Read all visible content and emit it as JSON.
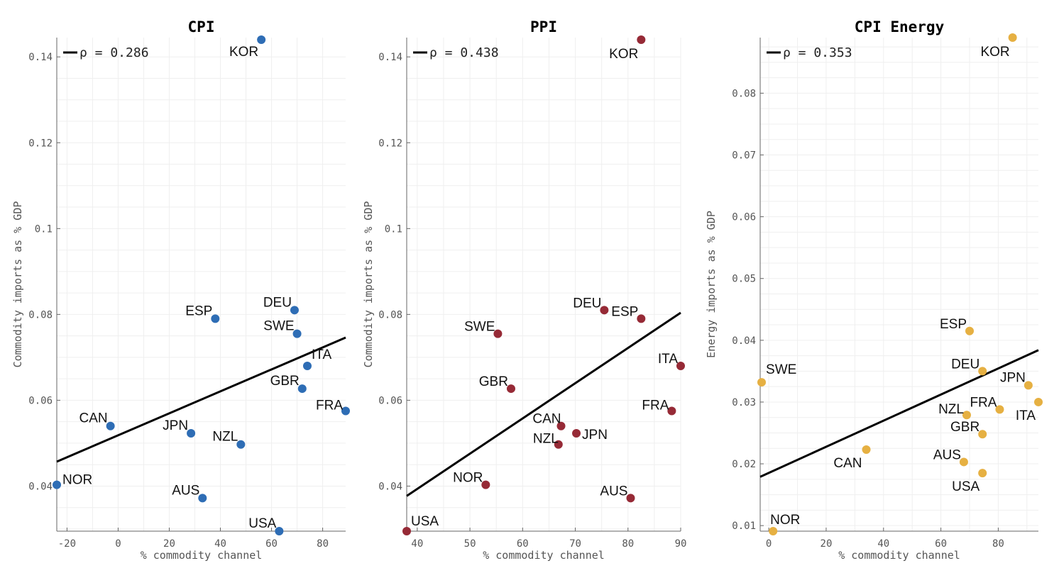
{
  "chart_data": [
    {
      "type": "scatter",
      "title": "CPI",
      "xlabel": "% commodity channel",
      "ylabel": "Commodity imports as % GDP",
      "xlim": [
        -24,
        89
      ],
      "ylim": [
        0.0295,
        0.1445
      ],
      "xticks": [
        -20,
        0,
        20,
        40,
        60,
        80
      ],
      "xtick_labels": [
        "-20",
        "0",
        "20",
        "40",
        "60",
        "80"
      ],
      "yticks": [
        0.04,
        0.06,
        0.08,
        0.1,
        0.12,
        0.14
      ],
      "ytick_labels": [
        "0.04",
        "0.06",
        "0.08",
        "0.1",
        "0.12",
        "0.14"
      ],
      "color": "#2e6db5",
      "grid": true,
      "legend": "top-left",
      "legend_label": "ρ = 0.286",
      "fit_line": {
        "x": [
          -24,
          89
        ],
        "y": [
          0.0457,
          0.0746
        ]
      },
      "points": [
        {
          "label": "KOR",
          "x": 56,
          "y": 0.144
        },
        {
          "label": "DEU",
          "x": 69,
          "y": 0.081
        },
        {
          "label": "ESP",
          "x": 38,
          "y": 0.079
        },
        {
          "label": "SWE",
          "x": 70,
          "y": 0.0755
        },
        {
          "label": "ITA",
          "x": 74,
          "y": 0.068
        },
        {
          "label": "GBR",
          "x": 72,
          "y": 0.0627
        },
        {
          "label": "FRA",
          "x": 89,
          "y": 0.0575
        },
        {
          "label": "CAN",
          "x": -3,
          "y": 0.054
        },
        {
          "label": "JPN",
          "x": 28.5,
          "y": 0.0523
        },
        {
          "label": "NZL",
          "x": 48,
          "y": 0.0497
        },
        {
          "label": "NOR",
          "x": -24,
          "y": 0.0403
        },
        {
          "label": "AUS",
          "x": 33,
          "y": 0.0372
        },
        {
          "label": "USA",
          "x": 63,
          "y": 0.0295
        }
      ]
    },
    {
      "type": "scatter",
      "title": "PPI",
      "xlabel": "% commodity channel",
      "ylabel": "Commodity imports as % GDP",
      "xlim": [
        38,
        90
      ],
      "ylim": [
        0.0295,
        0.1445
      ],
      "xticks": [
        40,
        50,
        60,
        70,
        80,
        90
      ],
      "xtick_labels": [
        "40",
        "50",
        "60",
        "70",
        "80",
        "90"
      ],
      "yticks": [
        0.04,
        0.06,
        0.08,
        0.1,
        0.12,
        0.14
      ],
      "ytick_labels": [
        "0.04",
        "0.06",
        "0.08",
        "0.1",
        "0.12",
        "0.14"
      ],
      "color": "#962a36",
      "grid": true,
      "legend": "top-left",
      "legend_label": "ρ = 0.438",
      "fit_line": {
        "x": [
          38,
          90
        ],
        "y": [
          0.0377,
          0.0804
        ]
      },
      "points": [
        {
          "label": "KOR",
          "x": 82.5,
          "y": 0.144
        },
        {
          "label": "DEU",
          "x": 75.5,
          "y": 0.081
        },
        {
          "label": "ESP",
          "x": 82.5,
          "y": 0.079
        },
        {
          "label": "SWE",
          "x": 55.3,
          "y": 0.0755
        },
        {
          "label": "ITA",
          "x": 90,
          "y": 0.068
        },
        {
          "label": "GBR",
          "x": 57.8,
          "y": 0.0627
        },
        {
          "label": "FRA",
          "x": 88.3,
          "y": 0.0575
        },
        {
          "label": "CAN",
          "x": 67.3,
          "y": 0.054
        },
        {
          "label": "JPN",
          "x": 70.2,
          "y": 0.0523
        },
        {
          "label": "NZL",
          "x": 66.8,
          "y": 0.0497
        },
        {
          "label": "NOR",
          "x": 53,
          "y": 0.0403
        },
        {
          "label": "AUS",
          "x": 80.5,
          "y": 0.0372
        },
        {
          "label": "USA",
          "x": 38,
          "y": 0.0295
        }
      ]
    },
    {
      "type": "scatter",
      "title": "CPI Energy",
      "xlabel": "% commodity channel",
      "ylabel": "Energy imports as % GDP",
      "xlim": [
        -3,
        94
      ],
      "ylim": [
        0.0091,
        0.089
      ],
      "xticks": [
        0,
        20,
        40,
        60,
        80
      ],
      "xtick_labels": [
        "0",
        "20",
        "40",
        "60",
        "80"
      ],
      "yticks": [
        0.01,
        0.02,
        0.03,
        0.04,
        0.05,
        0.06,
        0.07,
        0.08
      ],
      "ytick_labels": [
        "0.01",
        "0.02",
        "0.03",
        "0.04",
        "0.05",
        "0.06",
        "0.07",
        "0.08"
      ],
      "color": "#e6b042",
      "grid": true,
      "legend": "top-left",
      "legend_label": "ρ = 0.353",
      "fit_line": {
        "x": [
          -3,
          94
        ],
        "y": [
          0.0179,
          0.0384
        ]
      },
      "points": [
        {
          "label": "KOR",
          "x": 85,
          "y": 0.089
        },
        {
          "label": "ESP",
          "x": 70,
          "y": 0.0415
        },
        {
          "label": "DEU",
          "x": 74.5,
          "y": 0.035
        },
        {
          "label": "SWE",
          "x": -2.5,
          "y": 0.0332
        },
        {
          "label": "JPN",
          "x": 90.5,
          "y": 0.0327
        },
        {
          "label": "ITA",
          "x": 94,
          "y": 0.03
        },
        {
          "label": "FRA",
          "x": 80.5,
          "y": 0.0288
        },
        {
          "label": "NZL",
          "x": 69,
          "y": 0.0279
        },
        {
          "label": "GBR",
          "x": 74.5,
          "y": 0.0248
        },
        {
          "label": "CAN",
          "x": 34,
          "y": 0.0223
        },
        {
          "label": "AUS",
          "x": 68,
          "y": 0.0203
        },
        {
          "label": "USA",
          "x": 74.5,
          "y": 0.0185
        },
        {
          "label": "NOR",
          "x": 1.5,
          "y": 0.0091
        }
      ]
    }
  ]
}
